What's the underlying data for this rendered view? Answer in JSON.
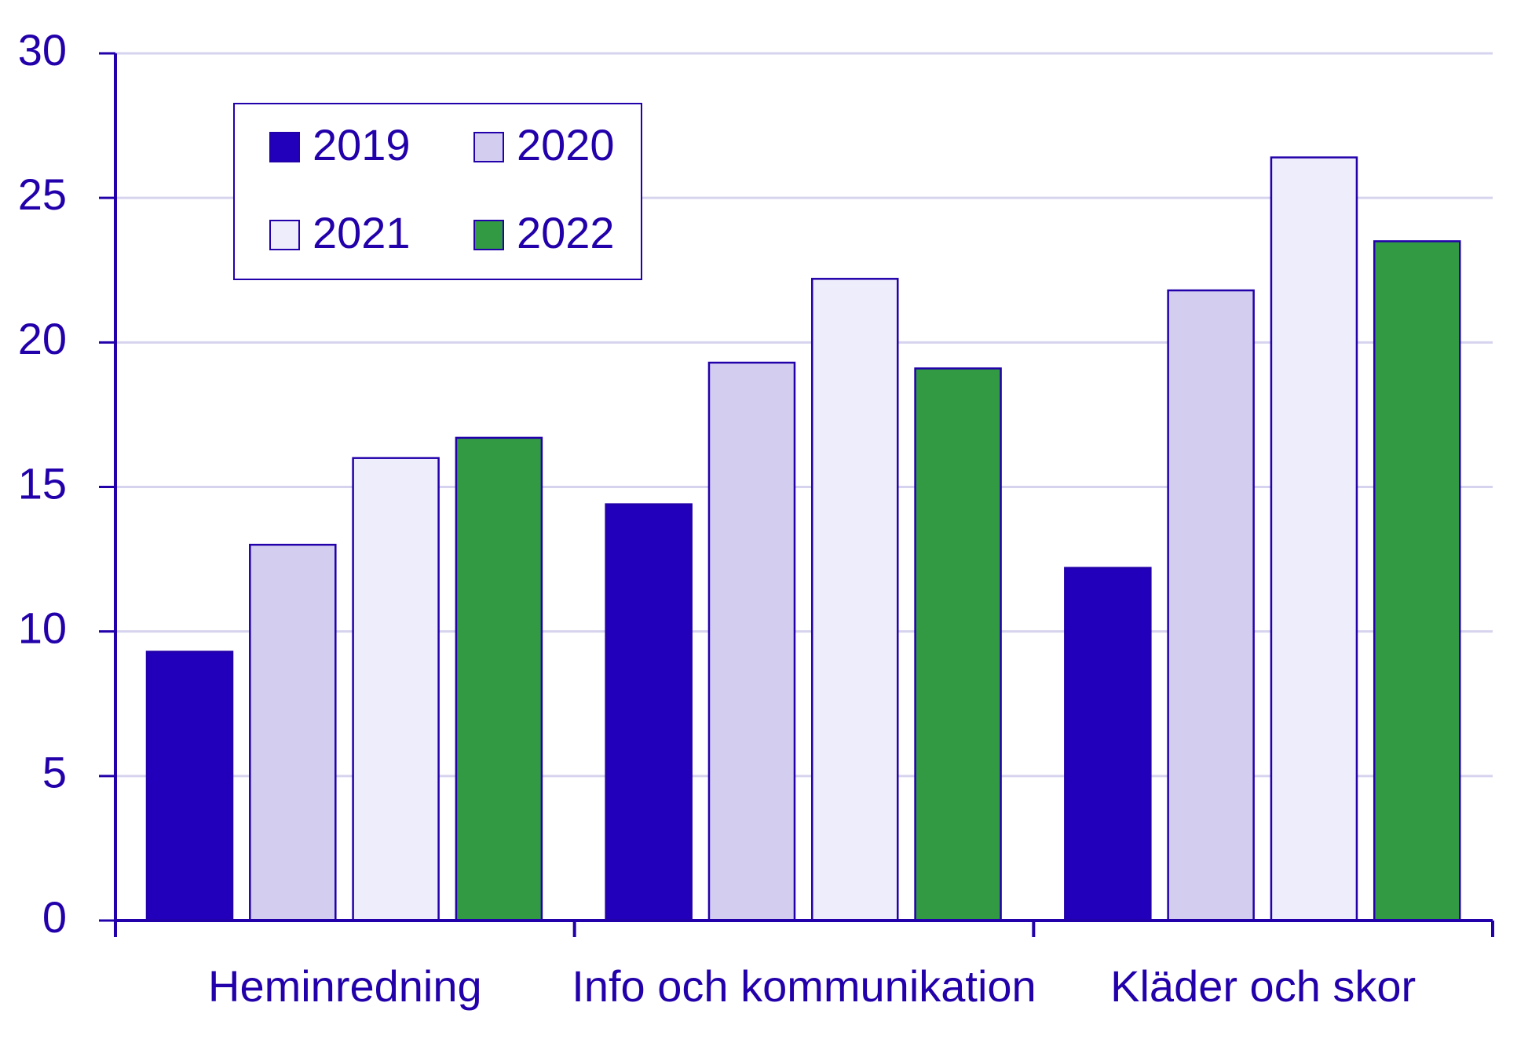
{
  "chart_data": {
    "type": "bar",
    "categories": [
      "Heminredning",
      "Info och kommunikation",
      "Kläder och skor"
    ],
    "series": [
      {
        "name": "2019",
        "color": "#2200bb",
        "values": [
          9.3,
          14.4,
          12.2
        ]
      },
      {
        "name": "2020",
        "color": "#d3cdf0",
        "values": [
          13.0,
          19.3,
          21.8
        ]
      },
      {
        "name": "2021",
        "color": "#ededfb",
        "values": [
          16.0,
          22.2,
          26.4
        ]
      },
      {
        "name": "2022",
        "color": "#339a44",
        "values": [
          16.7,
          19.1,
          23.5
        ]
      }
    ],
    "ylim": [
      0,
      30
    ],
    "yticks": [
      0,
      5,
      10,
      15,
      20,
      25,
      30
    ],
    "grid": true,
    "legend": "upper left"
  }
}
